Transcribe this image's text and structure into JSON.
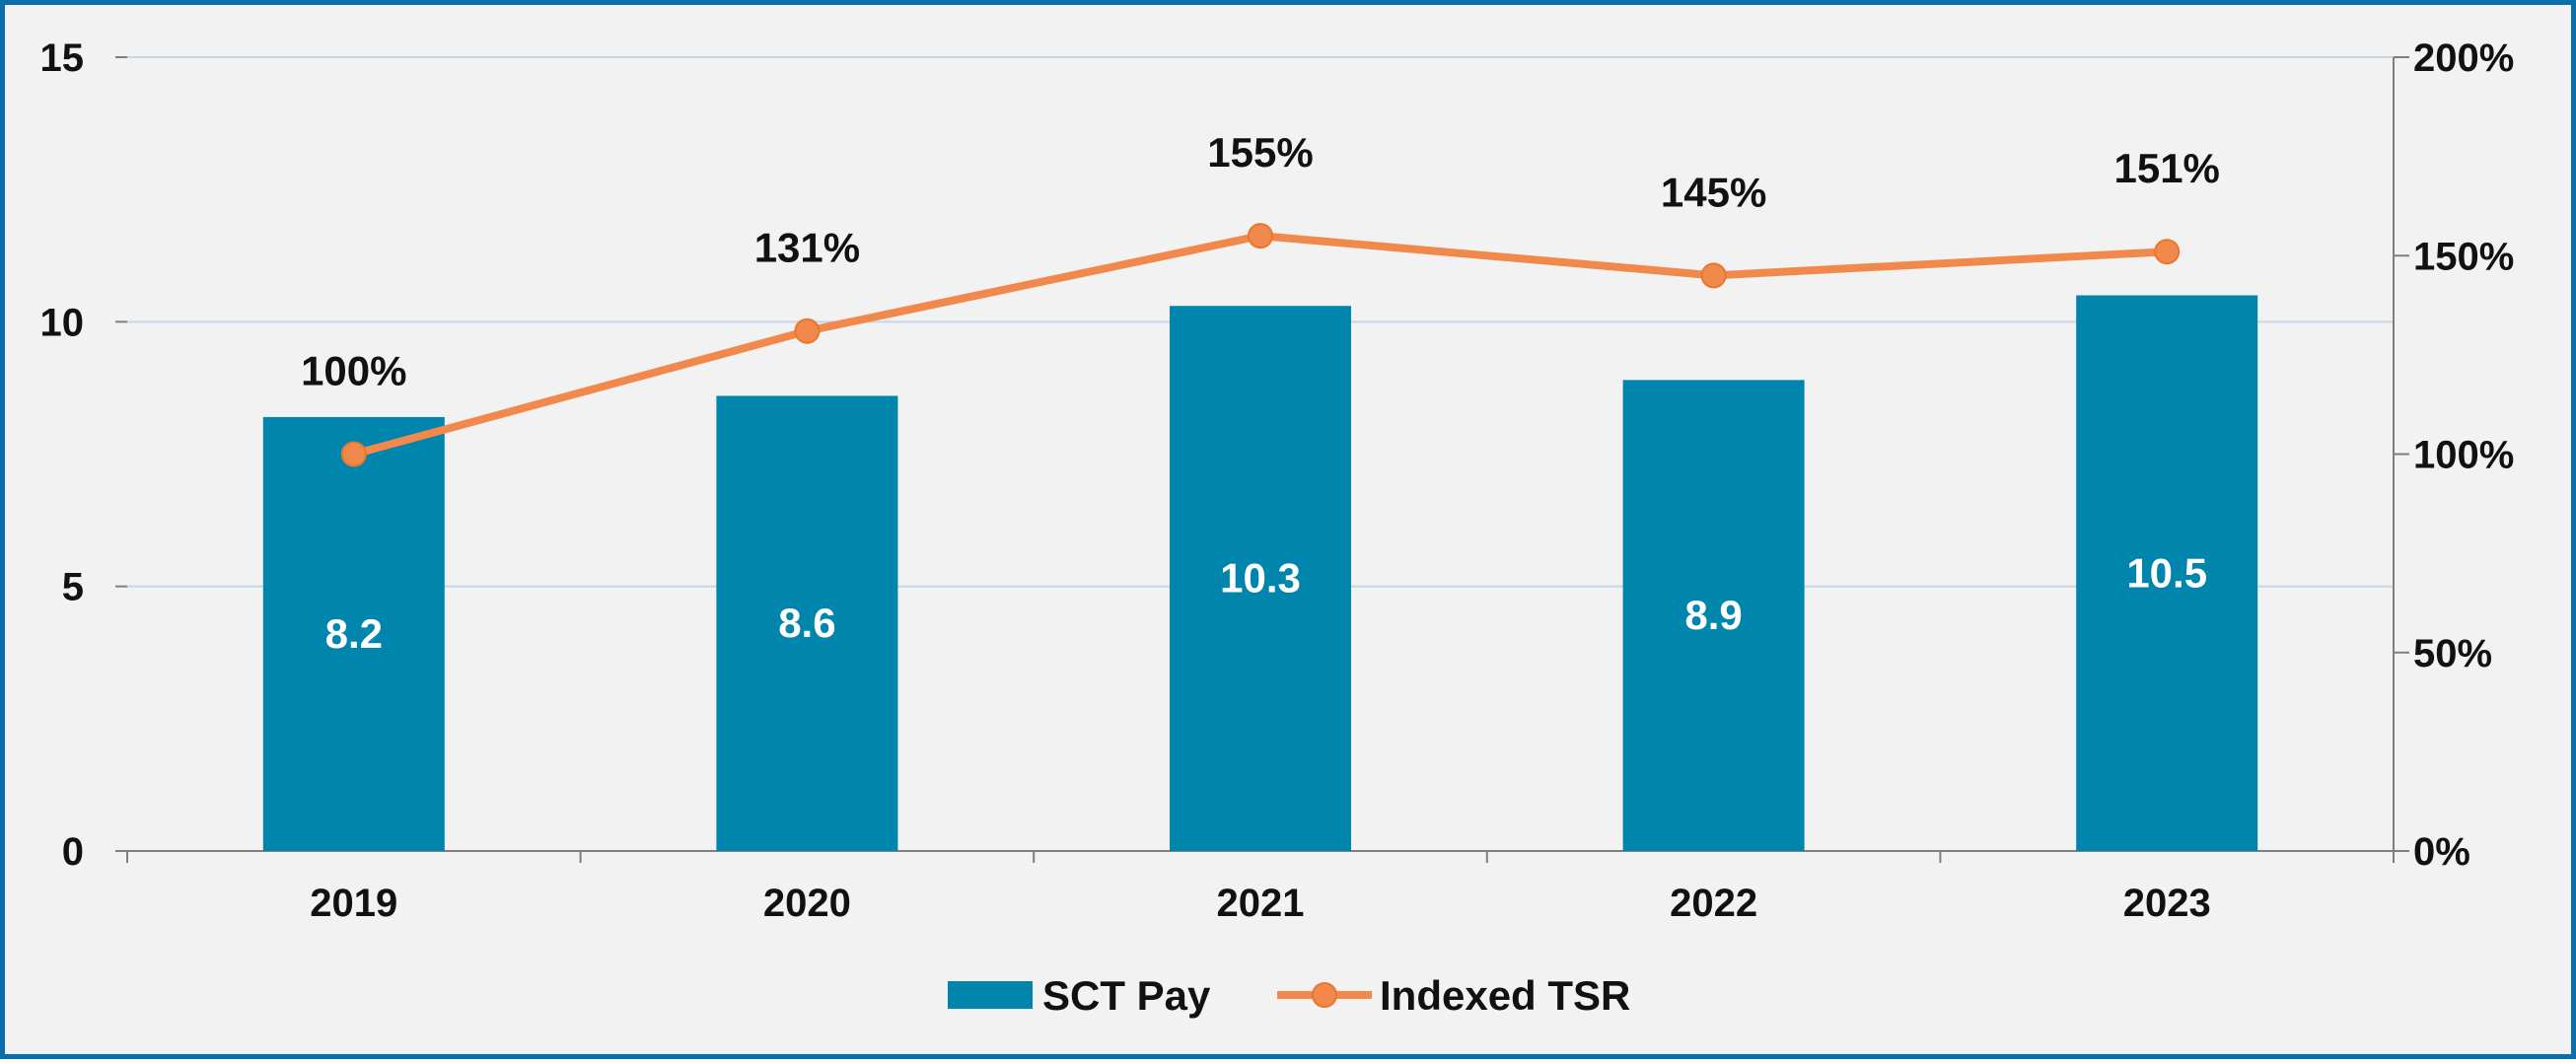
{
  "chart_data": {
    "type": "bar",
    "categories": [
      "2019",
      "2020",
      "2021",
      "2022",
      "2023"
    ],
    "series": [
      {
        "name": "SCT Pay",
        "kind": "bar",
        "axis": "left",
        "values": [
          8.2,
          8.6,
          10.3,
          8.9,
          10.5
        ],
        "labels": [
          "8.2",
          "8.6",
          "10.3",
          "8.9",
          "10.5"
        ],
        "color": "#0085ad"
      },
      {
        "name": "Indexed TSR",
        "kind": "line",
        "axis": "right",
        "values": [
          100,
          131,
          155,
          145,
          151
        ],
        "labels": [
          "100%",
          "131%",
          "155%",
          "145%",
          "151%"
        ],
        "color": "#f0894b"
      }
    ],
    "left_axis": {
      "ylim": [
        0,
        15
      ],
      "ticks": [
        "0",
        "5",
        "10",
        "15"
      ]
    },
    "right_axis": {
      "ylim": [
        0,
        200
      ],
      "ticks": [
        "0%",
        "50%",
        "100%",
        "150%",
        "200%"
      ]
    },
    "grid": true,
    "legend": "bottom-center",
    "colors": {
      "background": "#f2f2f2",
      "border": "#0a6fa8",
      "grid": "#c5d7e6",
      "axis": "#7f7f7f",
      "text": "#111111",
      "bar_label": "#ffffff"
    }
  }
}
